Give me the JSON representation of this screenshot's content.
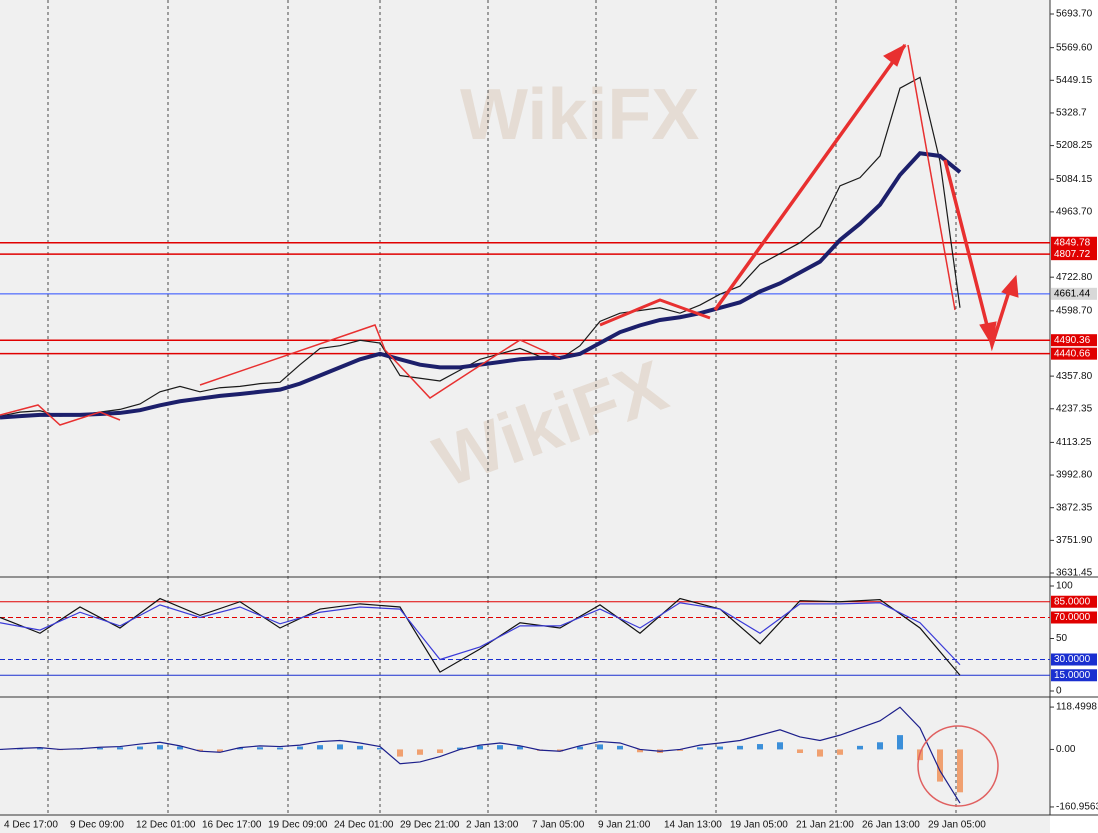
{
  "chart_data": {
    "type": "line",
    "watermark": "WikiFX",
    "x_labels": [
      "4 Dec 17:00",
      "9 Dec 09:00",
      "12 Dec 01:00",
      "16 Dec 17:00",
      "19 Dec 09:00",
      "24 Dec 01:00",
      "29 Dec 21:00",
      "2 Jan 13:00",
      "7 Jan 05:00",
      "9 Jan 21:00",
      "14 Jan 13:00",
      "19 Jan 05:00",
      "21 Jan 21:00",
      "26 Jan 13:00",
      "29 Jan 05:00"
    ],
    "price": {
      "ylim": [
        3616.7,
        5745.4
      ],
      "yticks": [
        {
          "value": 5693.7,
          "label": "5693.70"
        },
        {
          "value": 5569.6,
          "label": "5569.60"
        },
        5449.15,
        5328.7,
        {
          "value": 5208.25,
          "label": "5208.25"
        },
        5084.15,
        {
          "value": 4963.7,
          "label": "4963.70"
        },
        {
          "value": 4722.8,
          "label": "4722.80"
        },
        {
          "value": 4598.7,
          "label": "4598.70"
        },
        {
          "value": 4357.8,
          "label": "4357.80"
        },
        4237.35,
        4113.25,
        {
          "value": 3992.8,
          "label": "3992.80"
        },
        3872.35,
        {
          "value": 3751.9,
          "label": "3751.90"
        },
        3631.45
      ],
      "levels": [
        4849.78,
        4807.72,
        4661.44,
        4490.36,
        4440.66
      ],
      "level_colors": [
        "#e00000",
        "#e00000",
        "#2a4cff",
        "#e00000",
        "#e00000"
      ],
      "series": [
        {
          "color": "#1a1a1a",
          "values": [
            4210,
            4225,
            4230,
            4210,
            4215,
            4225,
            4235,
            4255,
            4300,
            4320,
            4300,
            4315,
            4320,
            4330,
            4335,
            4400,
            4460,
            4470,
            4490,
            4480,
            4360,
            4350,
            4340,
            4380,
            4420,
            4440,
            4460,
            4430,
            4420,
            4470,
            4560,
            4590,
            4600,
            4610,
            4590,
            4620,
            4660,
            4690,
            4770,
            4810,
            4850,
            4910,
            5060,
            5090,
            5170,
            5420,
            5460,
            5150,
            4610
          ]
        },
        {
          "color": "#1c1f6b",
          "values": [
            4205,
            4210,
            4215,
            4215,
            4215,
            4218,
            4222,
            4232,
            4250,
            4265,
            4275,
            4285,
            4292,
            4300,
            4308,
            4330,
            4360,
            4390,
            4420,
            4440,
            4420,
            4400,
            4390,
            4390,
            4400,
            4410,
            4420,
            4425,
            4425,
            4440,
            4480,
            4520,
            4545,
            4565,
            4575,
            4590,
            4610,
            4630,
            4670,
            4700,
            4740,
            4780,
            4860,
            4920,
            4990,
            5100,
            5180,
            5170,
            5110
          ]
        }
      ]
    },
    "oscillator": {
      "ylim": [
        -5.7,
        105.7
      ],
      "yticks": [
        100,
        50,
        0
      ],
      "levels": [
        {
          "value": 85,
          "label": "85.0000"
        },
        {
          "value": 70,
          "label": "70.0000"
        },
        {
          "value": 30,
          "label": "30.0000"
        },
        {
          "value": 15,
          "label": "15.0000"
        }
      ],
      "level_colors": [
        "#e00000",
        "#e00000",
        "#1a2fd0",
        "#1a2fd0"
      ],
      "series": [
        {
          "color": "#111111",
          "values": [
            70,
            55,
            80,
            60,
            88,
            72,
            85,
            60,
            78,
            83,
            80,
            18,
            40,
            65,
            60,
            82,
            55,
            88,
            78,
            45,
            86,
            85,
            87,
            60,
            15
          ]
        },
        {
          "color": "#3b3bd8",
          "values": [
            65,
            58,
            75,
            62,
            82,
            70,
            80,
            64,
            75,
            80,
            78,
            30,
            42,
            62,
            62,
            78,
            60,
            84,
            78,
            55,
            83,
            83,
            84,
            65,
            25
          ]
        }
      ]
    },
    "macd": {
      "ylim": [
        -183.5,
        138.3
      ],
      "yticks": [
        118.4998,
        {
          "value": 0,
          "label": "0.00"
        },
        -160.9563
      ],
      "histogram": [
        0,
        2,
        3,
        -2,
        1,
        4,
        6,
        8,
        12,
        8,
        -5,
        -6,
        4,
        6,
        5,
        8,
        12,
        14,
        10,
        4,
        -20,
        -15,
        -10,
        5,
        10,
        12,
        8,
        -4,
        -6,
        8,
        14,
        10,
        -8,
        -10,
        -4,
        6,
        8,
        10,
        15,
        20,
        -10,
        -20,
        -15,
        10,
        20,
        40,
        -30,
        -90,
        -120
      ],
      "hist_colors": [
        "#3b8fd9",
        "#f0a070"
      ],
      "series": [
        {
          "color": "#1c1f8b",
          "values": [
            0,
            3,
            5,
            0,
            2,
            6,
            8,
            15,
            20,
            10,
            -5,
            -8,
            5,
            10,
            8,
            12,
            22,
            25,
            18,
            8,
            -40,
            -35,
            -20,
            0,
            12,
            18,
            10,
            -2,
            -5,
            10,
            22,
            18,
            0,
            -5,
            0,
            12,
            18,
            25,
            40,
            55,
            35,
            25,
            40,
            60,
            80,
            118,
            60,
            -60,
            -150
          ]
        }
      ]
    }
  }
}
